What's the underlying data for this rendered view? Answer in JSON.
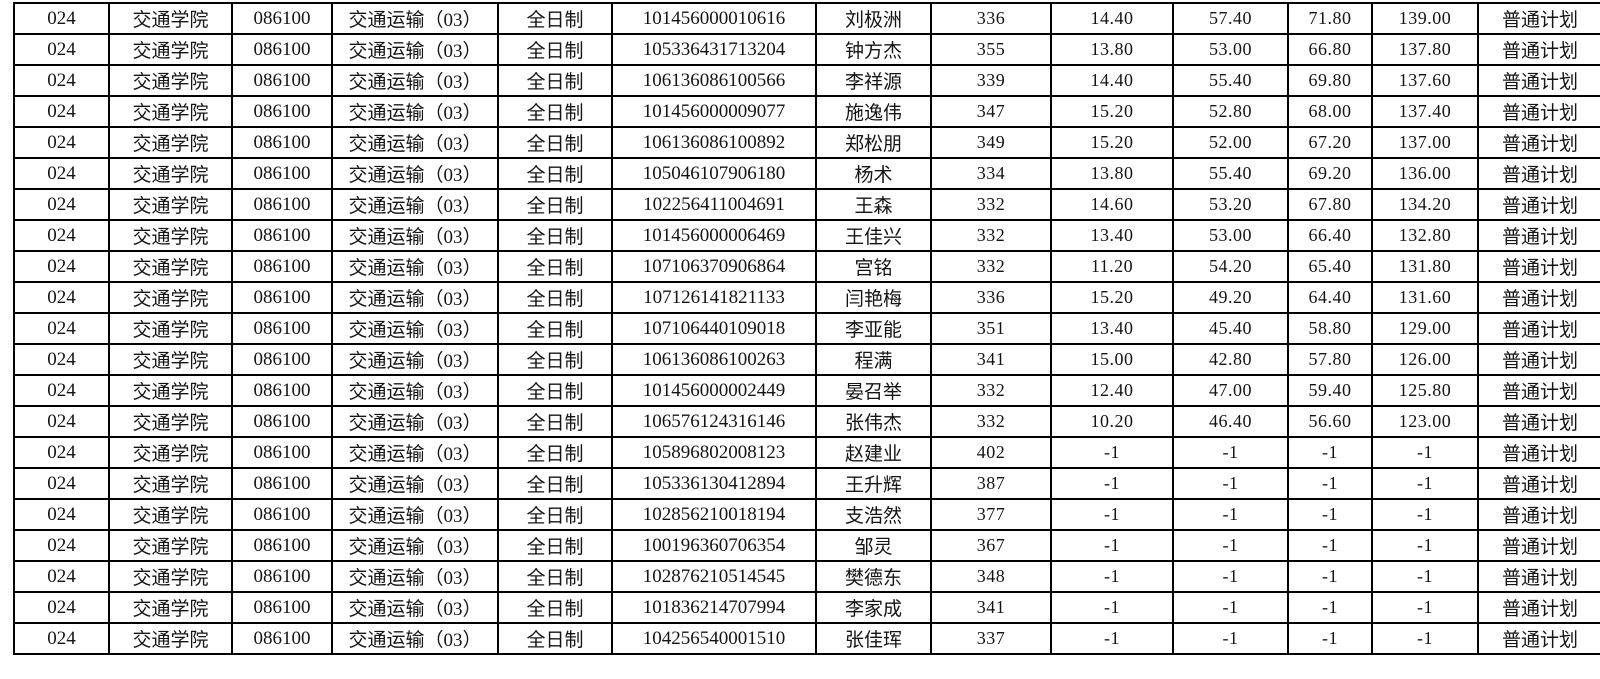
{
  "colors": {
    "page_background": "#ffffff",
    "table_border": "#000000",
    "table_text": "#141414"
  },
  "table": {
    "rows": [
      [
        "024",
        "交通学院",
        "086100",
        "交通运输（03）",
        "全日制",
        "101456000010616",
        "刘极洲",
        "336",
        "14.40",
        "57.40",
        "71.80",
        "139.00",
        "普通计划"
      ],
      [
        "024",
        "交通学院",
        "086100",
        "交通运输（03）",
        "全日制",
        "105336431713204",
        "钟方杰",
        "355",
        "13.80",
        "53.00",
        "66.80",
        "137.80",
        "普通计划"
      ],
      [
        "024",
        "交通学院",
        "086100",
        "交通运输（03）",
        "全日制",
        "106136086100566",
        "李祥源",
        "339",
        "14.40",
        "55.40",
        "69.80",
        "137.60",
        "普通计划"
      ],
      [
        "024",
        "交通学院",
        "086100",
        "交通运输（03）",
        "全日制",
        "101456000009077",
        "施逸伟",
        "347",
        "15.20",
        "52.80",
        "68.00",
        "137.40",
        "普通计划"
      ],
      [
        "024",
        "交通学院",
        "086100",
        "交通运输（03）",
        "全日制",
        "106136086100892",
        "郑松朋",
        "349",
        "15.20",
        "52.00",
        "67.20",
        "137.00",
        "普通计划"
      ],
      [
        "024",
        "交通学院",
        "086100",
        "交通运输（03）",
        "全日制",
        "105046107906180",
        "杨术",
        "334",
        "13.80",
        "55.40",
        "69.20",
        "136.00",
        "普通计划"
      ],
      [
        "024",
        "交通学院",
        "086100",
        "交通运输（03）",
        "全日制",
        "102256411004691",
        "王森",
        "332",
        "14.60",
        "53.20",
        "67.80",
        "134.20",
        "普通计划"
      ],
      [
        "024",
        "交通学院",
        "086100",
        "交通运输（03）",
        "全日制",
        "101456000006469",
        "王佳兴",
        "332",
        "13.40",
        "53.00",
        "66.40",
        "132.80",
        "普通计划"
      ],
      [
        "024",
        "交通学院",
        "086100",
        "交通运输（03）",
        "全日制",
        "107106370906864",
        "宫铭",
        "332",
        "11.20",
        "54.20",
        "65.40",
        "131.80",
        "普通计划"
      ],
      [
        "024",
        "交通学院",
        "086100",
        "交通运输（03）",
        "全日制",
        "107126141821133",
        "闫艳梅",
        "336",
        "15.20",
        "49.20",
        "64.40",
        "131.60",
        "普通计划"
      ],
      [
        "024",
        "交通学院",
        "086100",
        "交通运输（03）",
        "全日制",
        "107106440109018",
        "李亚能",
        "351",
        "13.40",
        "45.40",
        "58.80",
        "129.00",
        "普通计划"
      ],
      [
        "024",
        "交通学院",
        "086100",
        "交通运输（03）",
        "全日制",
        "106136086100263",
        "程满",
        "341",
        "15.00",
        "42.80",
        "57.80",
        "126.00",
        "普通计划"
      ],
      [
        "024",
        "交通学院",
        "086100",
        "交通运输（03）",
        "全日制",
        "101456000002449",
        "晏召举",
        "332",
        "12.40",
        "47.00",
        "59.40",
        "125.80",
        "普通计划"
      ],
      [
        "024",
        "交通学院",
        "086100",
        "交通运输（03）",
        "全日制",
        "106576124316146",
        "张伟杰",
        "332",
        "10.20",
        "46.40",
        "56.60",
        "123.00",
        "普通计划"
      ],
      [
        "024",
        "交通学院",
        "086100",
        "交通运输（03）",
        "全日制",
        "105896802008123",
        "赵建业",
        "402",
        "-1",
        "-1",
        "-1",
        "-1",
        "普通计划"
      ],
      [
        "024",
        "交通学院",
        "086100",
        "交通运输（03）",
        "全日制",
        "105336130412894",
        "王升辉",
        "387",
        "-1",
        "-1",
        "-1",
        "-1",
        "普通计划"
      ],
      [
        "024",
        "交通学院",
        "086100",
        "交通运输（03）",
        "全日制",
        "102856210018194",
        "支浩然",
        "377",
        "-1",
        "-1",
        "-1",
        "-1",
        "普通计划"
      ],
      [
        "024",
        "交通学院",
        "086100",
        "交通运输（03）",
        "全日制",
        "100196360706354",
        "邹灵",
        "367",
        "-1",
        "-1",
        "-1",
        "-1",
        "普通计划"
      ],
      [
        "024",
        "交通学院",
        "086100",
        "交通运输（03）",
        "全日制",
        "102876210514545",
        "樊德东",
        "348",
        "-1",
        "-1",
        "-1",
        "-1",
        "普通计划"
      ],
      [
        "024",
        "交通学院",
        "086100",
        "交通运输（03）",
        "全日制",
        "101836214707994",
        "李家成",
        "341",
        "-1",
        "-1",
        "-1",
        "-1",
        "普通计划"
      ],
      [
        "024",
        "交通学院",
        "086100",
        "交通运输（03）",
        "全日制",
        "104256540001510",
        "张佳珲",
        "337",
        "-1",
        "-1",
        "-1",
        "-1",
        "普通计划"
      ]
    ]
  }
}
